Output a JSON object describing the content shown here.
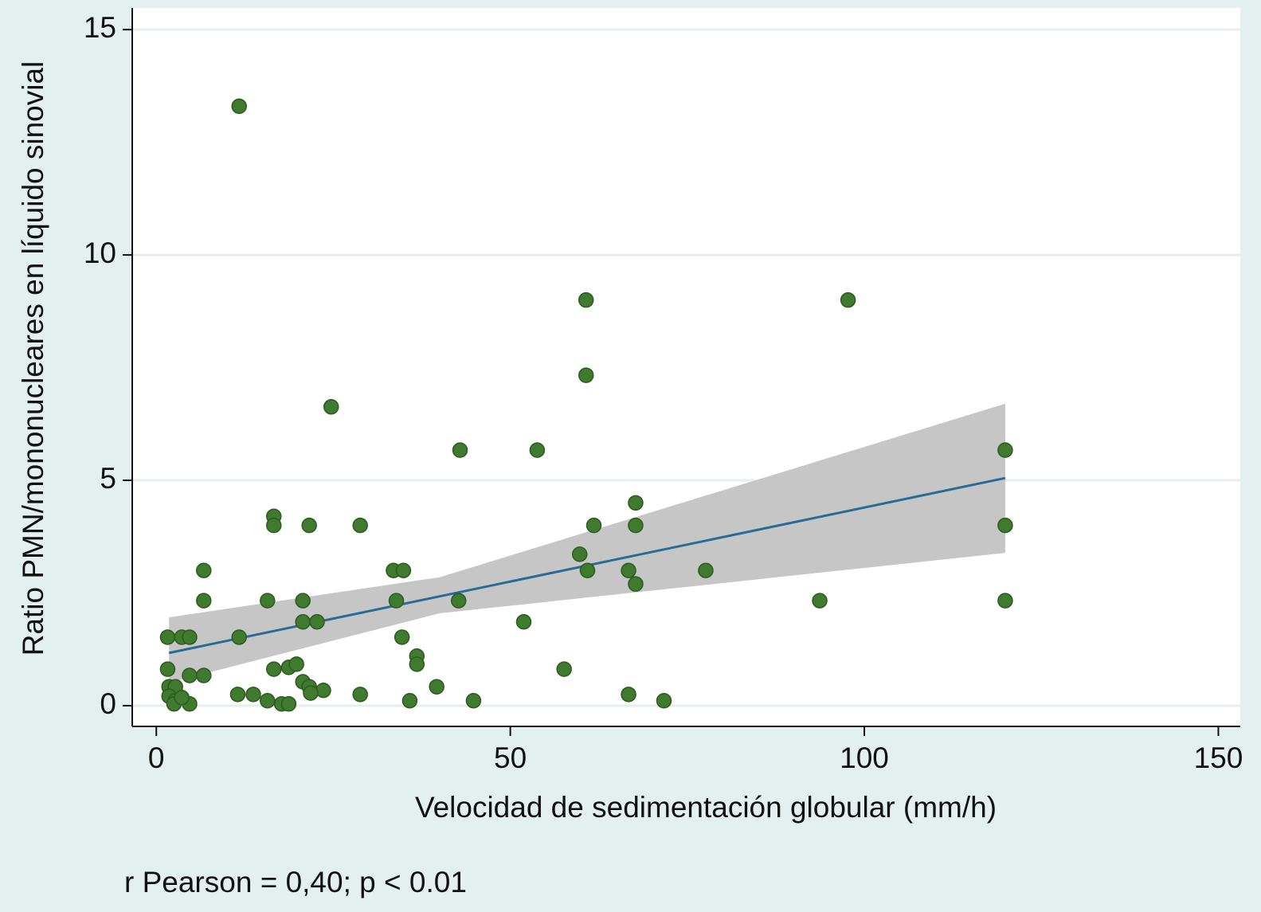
{
  "chart_data": {
    "type": "scatter",
    "xlabel": "Velocidad de sedimentación globular (mm/h)",
    "ylabel": "Ratio PMN/mononucleares en líquido sinovial",
    "annotation": "r Pearson = 0,40; p < 0.01",
    "xlim": [
      -3.4,
      153.1
    ],
    "ylim": [
      -0.46,
      15.48
    ],
    "xticks": [
      0,
      50,
      100,
      150
    ],
    "yticks": [
      0,
      5,
      10,
      15
    ],
    "grid": true,
    "color": "#3f7a2e",
    "x": [
      11.7,
      60.7,
      97.7,
      60.7,
      24.7,
      42.9,
      53.8,
      119.9,
      67.7,
      16.6,
      16.6,
      21.6,
      28.8,
      61.8,
      67.7,
      119.9,
      59.8,
      6.7,
      33.5,
      34.9,
      60.9,
      66.7,
      77.6,
      67.7,
      6.7,
      15.7,
      20.7,
      33.9,
      42.7,
      93.7,
      119.9,
      20.7,
      22.7,
      51.9,
      1.6,
      3.6,
      4.7,
      11.7,
      34.7,
      36.8,
      36.8,
      1.6,
      16.6,
      18.7,
      19.8,
      57.6,
      4.7,
      6.7,
      20.7,
      21.6,
      39.6,
      1.8,
      2.7,
      23.6,
      1.8,
      11.5,
      13.7,
      28.8,
      21.8,
      66.7,
      2.7,
      15.7,
      35.8,
      44.8,
      71.7,
      2.5,
      4.7,
      17.7,
      18.7,
      3.6
    ],
    "y": [
      13.3,
      9.0,
      9.0,
      7.33,
      6.63,
      5.67,
      5.67,
      5.67,
      4.5,
      4.2,
      4.0,
      4.0,
      4.0,
      4.0,
      4.0,
      4.0,
      3.36,
      3.0,
      3.0,
      3.0,
      3.0,
      3.0,
      3.0,
      2.7,
      2.33,
      2.33,
      2.33,
      2.33,
      2.33,
      2.33,
      2.33,
      1.86,
      1.86,
      1.86,
      1.52,
      1.52,
      1.52,
      1.52,
      1.52,
      1.1,
      0.92,
      0.81,
      0.81,
      0.85,
      0.92,
      0.81,
      0.67,
      0.67,
      0.53,
      0.42,
      0.42,
      0.42,
      0.42,
      0.34,
      0.21,
      0.25,
      0.25,
      0.25,
      0.28,
      0.25,
      0.11,
      0.11,
      0.11,
      0.11,
      0.11,
      0.04,
      0.04,
      0.04,
      0.04,
      0.18
    ],
    "fit": {
      "color": "#2a6a96",
      "x": [
        1.8,
        119.9
      ],
      "y": [
        1.17,
        5.05
      ]
    },
    "ci": {
      "color": "#c6c6c6",
      "x": [
        1.8,
        40,
        119.9
      ],
      "lower": [
        0.51,
        2.05,
        3.39
      ],
      "upper": [
        1.96,
        2.85,
        6.7
      ]
    }
  }
}
